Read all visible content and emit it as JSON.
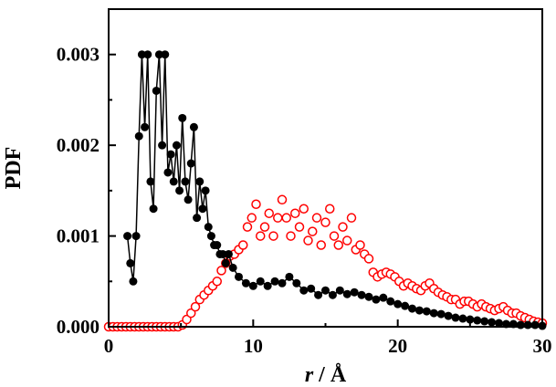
{
  "chart_data": {
    "type": "scatter",
    "title": "",
    "xlabel": "r / Å",
    "xlabel_var": "r",
    "xlabel_unit": " / Å",
    "ylabel": "PDF",
    "xlim": [
      0,
      30
    ],
    "ylim": [
      0,
      0.0035
    ],
    "x_ticks": [
      0,
      10,
      20,
      30
    ],
    "x_tick_labels": [
      "0",
      "10",
      "20",
      "30"
    ],
    "y_ticks": [
      0,
      0.001,
      0.002,
      0.003
    ],
    "y_tick_labels": [
      "0.000",
      "0.001",
      "0.002",
      "0.003"
    ],
    "grid": false,
    "series": [
      {
        "marker": "filled-circle",
        "connected": true,
        "color": "#000000",
        "x": [
          1.3,
          1.5,
          1.7,
          1.9,
          2.1,
          2.3,
          2.5,
          2.7,
          2.9,
          3.1,
          3.3,
          3.5,
          3.7,
          3.9,
          4.1,
          4.3,
          4.5,
          4.7,
          4.9,
          5.1,
          5.3,
          5.5,
          5.7,
          5.9,
          6.1,
          6.3,
          6.5,
          6.7,
          6.9,
          7.1,
          7.3,
          7.5,
          7.7,
          7.9,
          8.1,
          8.3,
          8.6,
          9.0,
          9.5,
          10.0,
          10.5,
          11.0,
          11.5,
          12.0,
          12.5,
          13.0,
          13.5,
          14.0,
          14.5,
          15.0,
          15.5,
          16.0,
          16.5,
          17.0,
          17.5,
          18.0,
          18.5,
          19.0,
          19.5,
          20.0,
          20.5,
          21.0,
          21.5,
          22.0,
          22.5,
          23.0,
          23.5,
          24.0,
          24.5,
          25.0,
          25.5,
          26.0,
          26.5,
          27.0,
          27.5,
          28.0,
          28.5,
          29.0,
          29.5,
          30.0
        ],
        "y": [
          0.001,
          0.0007,
          0.0005,
          0.001,
          0.0021,
          0.003,
          0.0022,
          0.003,
          0.0016,
          0.0013,
          0.0026,
          0.003,
          0.002,
          0.003,
          0.0017,
          0.0019,
          0.0016,
          0.002,
          0.0015,
          0.0023,
          0.0016,
          0.0014,
          0.0018,
          0.0022,
          0.0012,
          0.0016,
          0.0013,
          0.0015,
          0.0011,
          0.001,
          0.0009,
          0.0009,
          0.0008,
          0.0008,
          0.0007,
          0.0008,
          0.00065,
          0.00055,
          0.00048,
          0.00045,
          0.0005,
          0.00045,
          0.0005,
          0.00048,
          0.00055,
          0.00048,
          0.0004,
          0.00042,
          0.00035,
          0.0004,
          0.00035,
          0.0004,
          0.00036,
          0.00038,
          0.00035,
          0.00033,
          0.0003,
          0.00032,
          0.00028,
          0.00025,
          0.00023,
          0.0002,
          0.00018,
          0.00017,
          0.00015,
          0.00014,
          0.00012,
          0.0001,
          9e-05,
          8e-05,
          7e-05,
          6e-05,
          5e-05,
          4e-05,
          3e-05,
          3e-05,
          2e-05,
          2e-05,
          2e-05,
          1e-05
        ]
      },
      {
        "marker": "open-circle",
        "connected": false,
        "color": "#ff0000",
        "x": [
          0.0,
          0.3,
          0.6,
          0.9,
          1.2,
          1.5,
          1.8,
          2.1,
          2.4,
          2.7,
          3.0,
          3.3,
          3.6,
          3.9,
          4.2,
          4.5,
          4.8,
          5.1,
          5.4,
          5.7,
          6.0,
          6.3,
          6.6,
          6.9,
          7.2,
          7.5,
          7.8,
          8.1,
          8.4,
          8.7,
          9.0,
          9.3,
          9.6,
          9.9,
          10.2,
          10.5,
          10.8,
          11.1,
          11.4,
          11.7,
          12.0,
          12.3,
          12.6,
          12.9,
          13.2,
          13.5,
          13.8,
          14.1,
          14.4,
          14.7,
          15.0,
          15.3,
          15.6,
          15.9,
          16.2,
          16.5,
          16.8,
          17.1,
          17.4,
          17.7,
          18.0,
          18.3,
          18.6,
          18.9,
          19.2,
          19.5,
          19.8,
          20.1,
          20.4,
          20.7,
          21.0,
          21.3,
          21.6,
          21.9,
          22.2,
          22.5,
          22.8,
          23.1,
          23.4,
          23.7,
          24.0,
          24.3,
          24.6,
          24.9,
          25.2,
          25.5,
          25.8,
          26.1,
          26.4,
          26.7,
          27.0,
          27.3,
          27.6,
          27.9,
          28.2,
          28.5,
          28.8,
          29.1,
          29.4,
          29.7,
          30.0
        ],
        "y": [
          0,
          0,
          0,
          0,
          0,
          0,
          0,
          0,
          0,
          0,
          0,
          0,
          0,
          0,
          0,
          0,
          0,
          2e-05,
          8e-05,
          0.00015,
          0.00022,
          0.0003,
          0.00035,
          0.0004,
          0.00045,
          0.0005,
          0.00062,
          0.0007,
          0.00078,
          0.0008,
          0.00085,
          0.0009,
          0.0011,
          0.0012,
          0.00135,
          0.001,
          0.0011,
          0.00125,
          0.001,
          0.0012,
          0.0014,
          0.0012,
          0.001,
          0.00125,
          0.0011,
          0.0013,
          0.00095,
          0.00105,
          0.0012,
          0.0009,
          0.00115,
          0.0013,
          0.001,
          0.0009,
          0.0011,
          0.00095,
          0.0012,
          0.00085,
          0.0009,
          0.0008,
          0.00075,
          0.0006,
          0.00055,
          0.00058,
          0.0006,
          0.00058,
          0.00055,
          0.0005,
          0.00045,
          0.00048,
          0.00045,
          0.00042,
          0.0004,
          0.00045,
          0.00048,
          0.00042,
          0.00038,
          0.00035,
          0.00033,
          0.0003,
          0.0003,
          0.00025,
          0.00028,
          0.00028,
          0.00025,
          0.00022,
          0.00025,
          0.00022,
          0.0002,
          0.00018,
          0.0002,
          0.00022,
          0.00018,
          0.00015,
          0.00015,
          0.00012,
          0.0001,
          8e-05,
          6e-05,
          5e-05,
          4e-05
        ]
      }
    ]
  }
}
